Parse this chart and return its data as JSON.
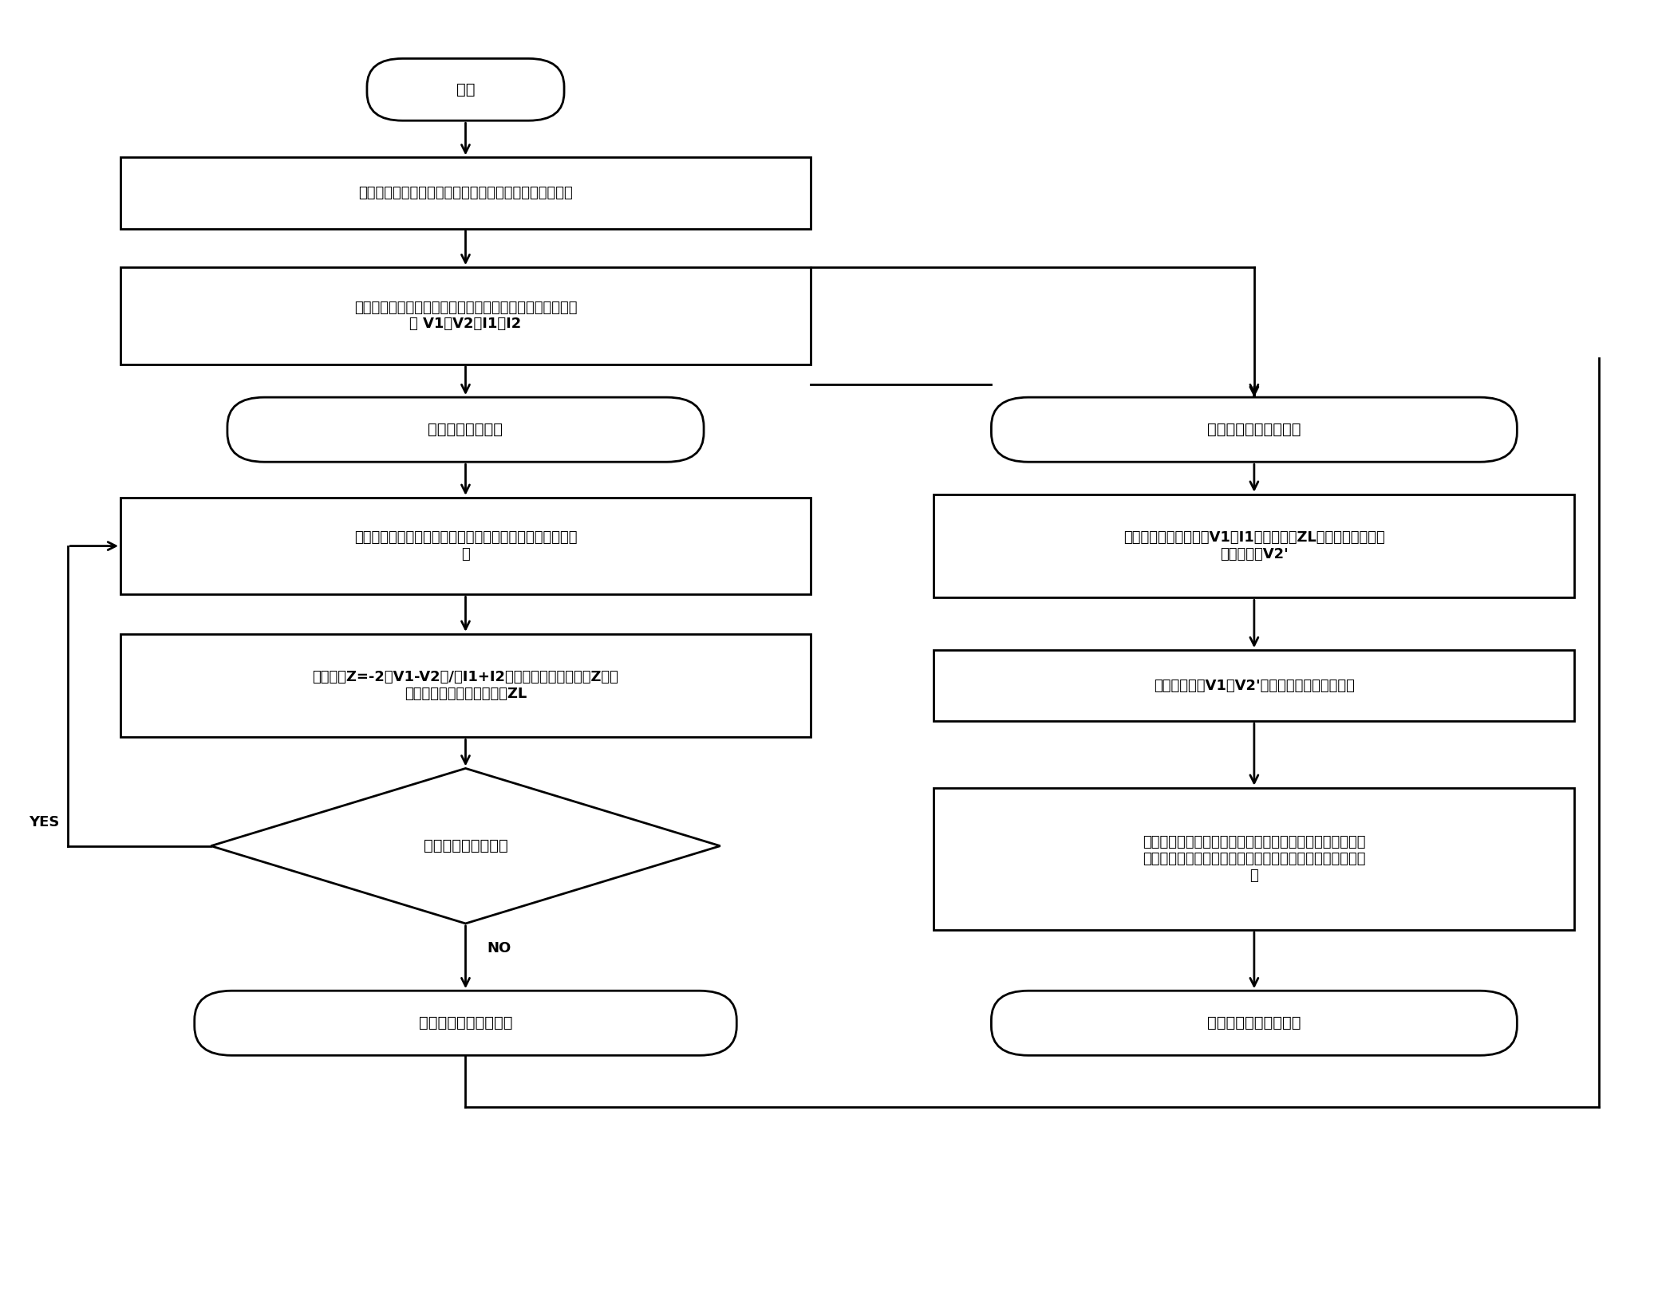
{
  "bg_color": "#ffffff",
  "line_color": "#000000",
  "text_color": "#000000",
  "start_text": "开始",
  "b1_text": "线路两侧装置均具有广域测量功能，之间有高速通信通道",
  "b2_text": "两侧装置各自在统一时标下计算母线电压相量和线路电流相\n量 V1，V2，I1，I2",
  "oval1_text": "线路实时阻抗计算",
  "b3_text": "任一侧装置通过高速通信通道得到对侧带时标电压和电流相\n量",
  "b4_text": "根据公式Z=-2（V1-V2）/（I1+I2），得到线路实时阻抗Z，并\n保存该值作为线路补偿阻抗ZL",
  "diamond_text": "高速通信通道正常？",
  "oval2_text": "线路实时阻抗计算结束",
  "yes_text": "YES",
  "no_text": "NO",
  "ro1_text": "线路失步解列判断开始",
  "rb1_text": "利用单侧电压电流相量V1，I1，和保存的ZL，可以计算得到对\n侧电压相量V2'",
  "rb2_text": "根据电压相量V1和V2'，可以得到两电压相角差",
  "rb3_text": "根据两电压相角差变化规律，利用基于阻抗补偿原理的失步\n解列判据，判断是否发生了振荡中心落在本线路上的失步振\n荡",
  "ro2_text": "线路失步解列判断结束",
  "lw": 2.0,
  "fs": 14,
  "fs_label": 13
}
